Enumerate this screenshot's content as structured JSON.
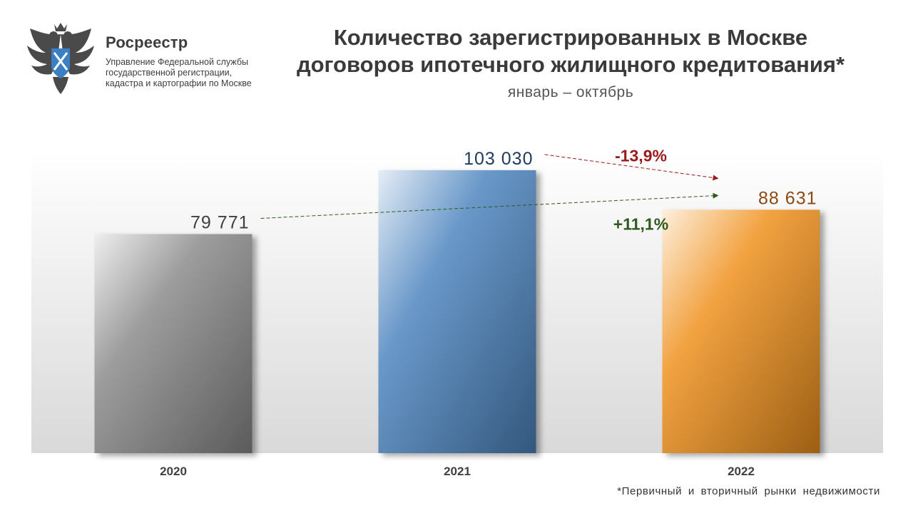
{
  "header": {
    "org_name": "Росреестр",
    "org_sub": [
      "Управление Федеральной службы",
      "государственной регистрации,",
      "кадастра и картографии по Москве"
    ],
    "logo_icon": "rosreestr-eagle-emblem-icon"
  },
  "title_lines": [
    "Количество зарегистрированных в Москве",
    "договоров ипотечного жилищного кредитования*"
  ],
  "subtitle": "январь – октябрь",
  "footnote": "*Первичный и вторичный рынки недвижимости",
  "chart_data": {
    "type": "bar",
    "categories": [
      "2020",
      "2021",
      "2022"
    ],
    "values": [
      79771,
      103030,
      88631
    ],
    "value_labels": [
      "79 771",
      "103 030",
      "88 631"
    ],
    "ylim": [
      0,
      110000
    ],
    "grid": false,
    "legend": "none",
    "colors": [
      "#8c8c8c",
      "#4f86c0",
      "#f0921e"
    ],
    "label_colors": [
      "#404040",
      "#1f3a5f",
      "#8a4a14"
    ],
    "annotations": [
      {
        "from": "2021",
        "to": "2022",
        "text": "-13,9%",
        "color": "#9a1b1b"
      },
      {
        "from": "2020",
        "to": "2022",
        "text": "+11,1%",
        "color": "#2f5a1e"
      }
    ]
  }
}
